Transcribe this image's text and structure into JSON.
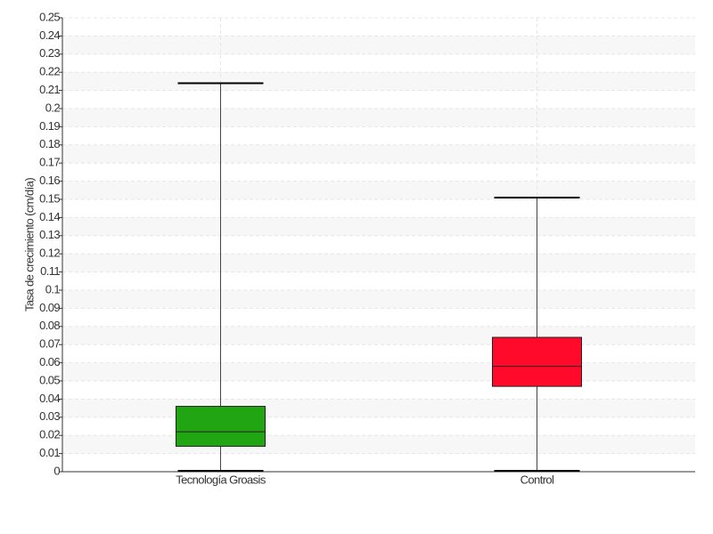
{
  "chart_data": {
    "type": "box",
    "y_label": "Tasa de crecimiento (cm/día)",
    "categories": [
      "Tecnología Groasis",
      "Control"
    ],
    "boxes": [
      {
        "color": "#22a512",
        "min": 0,
        "q1": 0.014,
        "median": 0.022,
        "q3": 0.036,
        "max": 0.214
      },
      {
        "color": "#ff0a2a",
        "min": 0,
        "q1": 0.047,
        "median": 0.058,
        "q3": 0.074,
        "max": 0.151
      }
    ],
    "ylim": [
      0,
      0.25
    ],
    "yticks": [
      0,
      0.01,
      0.02,
      0.03,
      0.04,
      0.05,
      0.06,
      0.07,
      0.08,
      0.09,
      0.1,
      0.11,
      0.12,
      0.13,
      0.14,
      0.15,
      0.16,
      0.17,
      0.18,
      0.19,
      0.2,
      0.21,
      0.22,
      0.23,
      0.24,
      0.25
    ],
    "grid": true
  }
}
